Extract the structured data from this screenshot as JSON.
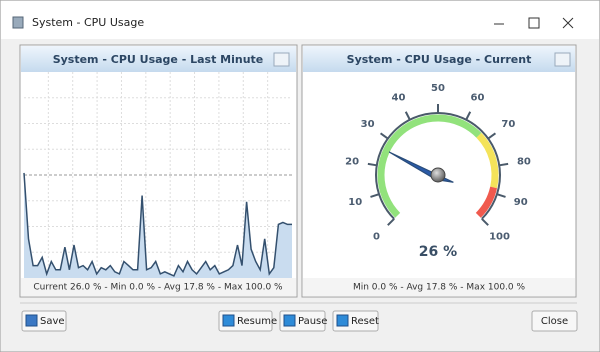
{
  "window": {
    "title": "System - CPU Usage"
  },
  "chart_data": [
    {
      "type": "area",
      "title": "System - CPU Usage - Last Minute",
      "values": [
        51,
        19,
        6,
        6,
        10,
        2,
        8,
        4,
        4,
        15,
        4,
        16,
        5,
        6,
        4,
        8,
        2,
        5,
        4,
        6,
        3,
        2,
        8,
        6,
        4,
        4,
        40,
        4,
        5,
        8,
        2,
        3,
        2,
        1,
        6,
        3,
        8,
        4,
        2,
        5,
        8,
        4,
        6,
        2,
        3,
        4,
        6,
        16,
        6,
        37,
        14,
        8,
        4,
        19,
        2,
        5,
        26,
        27,
        26,
        26
      ],
      "color": "#34506e",
      "fill": "#c9dcef",
      "ylim": [
        0,
        100
      ],
      "grid": true,
      "footer": "Current 26.0 % - Min 0.0 % - Avg 17.8 % - Max 100.0 %"
    },
    {
      "type": "gauge",
      "title": "System - CPU Usage - Current",
      "value": 26,
      "value_label": "26 %",
      "range": [
        0,
        100
      ],
      "ticks": [
        0,
        10,
        20,
        30,
        40,
        50,
        60,
        70,
        80,
        90,
        100
      ],
      "bands": [
        {
          "from": 0,
          "to": 67,
          "color": "#92e27c"
        },
        {
          "from": 67,
          "to": 88,
          "color": "#f4e35a"
        },
        {
          "from": 88,
          "to": 100,
          "color": "#f05a4e"
        }
      ],
      "footer": "Min 0.0 % - Avg 17.8 % - Max 100.0 %"
    }
  ],
  "buttons": [
    "Save",
    "Resume",
    "Pause",
    "Reset",
    "Close"
  ]
}
